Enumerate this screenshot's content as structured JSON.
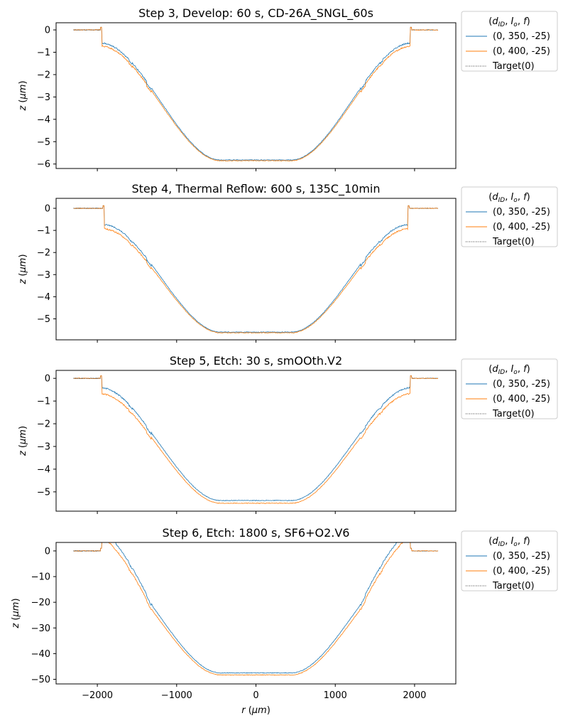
{
  "chart_data": [
    {
      "type": "line",
      "title": "Step 3, Develop: 60 s, CD-26A_SNGL_60s",
      "xlabel": "r (µm)",
      "ylabel": "z (µm)",
      "xlim": [
        -2520,
        2520
      ],
      "ylim": [
        -6.2,
        0.32
      ],
      "yticks": [
        0,
        -1,
        -2,
        -3,
        -4,
        -5,
        -6
      ],
      "xticks": [
        -2000,
        -1000,
        0,
        1000,
        2000
      ],
      "legend": {
        "title": "(d_ID, I_o, f)",
        "placement": "outside right"
      },
      "target": {
        "z_center": -5.48,
        "z_rim": -1.0,
        "rim_r": 1950
      },
      "series": [
        {
          "name": "(0, 350, -25)",
          "color": "#1f77b4",
          "z_center": -5.82,
          "z_shelf": -0.62,
          "shelf_r": 1950,
          "shelf_slope": 0.03
        },
        {
          "name": "(0, 400, -25)",
          "color": "#ff7f0e",
          "z_center": -5.85,
          "z_shelf": -0.78,
          "shelf_r": 1950,
          "shelf_slope": 0.05
        }
      ],
      "x_edge": 2300
    },
    {
      "type": "line",
      "title": "Step 4, Thermal Reflow: 600 s, 135C_10min",
      "xlabel": "r (µm)",
      "ylabel": "z (µm)",
      "xlim": [
        -2520,
        2520
      ],
      "ylim": [
        -5.95,
        0.45
      ],
      "yticks": [
        0,
        -1,
        -2,
        -3,
        -4,
        -5
      ],
      "xticks": [
        -2000,
        -1000,
        0,
        1000,
        2000
      ],
      "legend": {
        "title": "(d_ID, I_o, f)",
        "placement": "outside right"
      },
      "target": {
        "z_center": -5.25,
        "z_rim": -1.0,
        "rim_r": 1920
      },
      "series": [
        {
          "name": "(0, 350, -25)",
          "color": "#1f77b4",
          "z_center": -5.6,
          "z_shelf": -0.78,
          "shelf_r": 1920,
          "shelf_slope": 0.04
        },
        {
          "name": "(0, 400, -25)",
          "color": "#ff7f0e",
          "z_center": -5.63,
          "z_shelf": -0.98,
          "shelf_r": 1920,
          "shelf_slope": 0.05
        }
      ],
      "x_edge": 2300
    },
    {
      "type": "line",
      "title": "Step 5, Etch: 30 s, smOOth.V2",
      "xlabel": "r (µm)",
      "ylabel": "z (µm)",
      "xlim": [
        -2520,
        2520
      ],
      "ylim": [
        -5.85,
        0.35
      ],
      "yticks": [
        0,
        -1,
        -2,
        -3,
        -4,
        -5
      ],
      "xticks": [
        -2000,
        -1000,
        0,
        1000,
        2000
      ],
      "legend": {
        "title": "(d_ID, I_o, f)",
        "placement": "outside right"
      },
      "target": {
        "z_center": -5.45,
        "z_rim": 0.0,
        "rim_r": 1950
      },
      "series": [
        {
          "name": "(0, 350, -25)",
          "color": "#1f77b4",
          "z_center": -5.38,
          "z_shelf": -0.55,
          "shelf_r": 1950,
          "shelf_slope": 0.15
        },
        {
          "name": "(0, 400, -25)",
          "color": "#ff7f0e",
          "z_center": -5.5,
          "z_shelf": -0.82,
          "shelf_r": 1950,
          "shelf_slope": 0.15
        }
      ],
      "x_edge": 2300
    },
    {
      "type": "line",
      "title": "Step 6, Etch: 1800 s, SF6+O2.V6",
      "xlabel": "r (µm)",
      "ylabel": "z (µm)",
      "xlim": [
        -2520,
        2520
      ],
      "ylim": [
        -51.8,
        3.3
      ],
      "yticks": [
        0,
        -10,
        -20,
        -30,
        -40,
        -50
      ],
      "xticks": [
        -2000,
        -1000,
        0,
        1000,
        2000
      ],
      "legend": {
        "title": "(d_ID, I_o, f)",
        "placement": "outside right"
      },
      "target": {
        "z_center": -48.5,
        "z_rim": 0.0,
        "rim_r": 1950
      },
      "series": [
        {
          "name": "(0, 350, -25)",
          "color": "#1f77b4",
          "z_center": -47.5,
          "z_shelf": -4.5,
          "shelf_r": 1950,
          "shelf_slope": 1.5
        },
        {
          "name": "(0, 400, -25)",
          "color": "#ff7f0e",
          "z_center": -48.3,
          "z_shelf": -7.0,
          "shelf_r": 1950,
          "shelf_slope": 1.5
        }
      ],
      "x_edge": 2300
    }
  ],
  "target_label": "Target(0)",
  "target_color": "#000000",
  "bottom_xlabel": "r (µm)"
}
